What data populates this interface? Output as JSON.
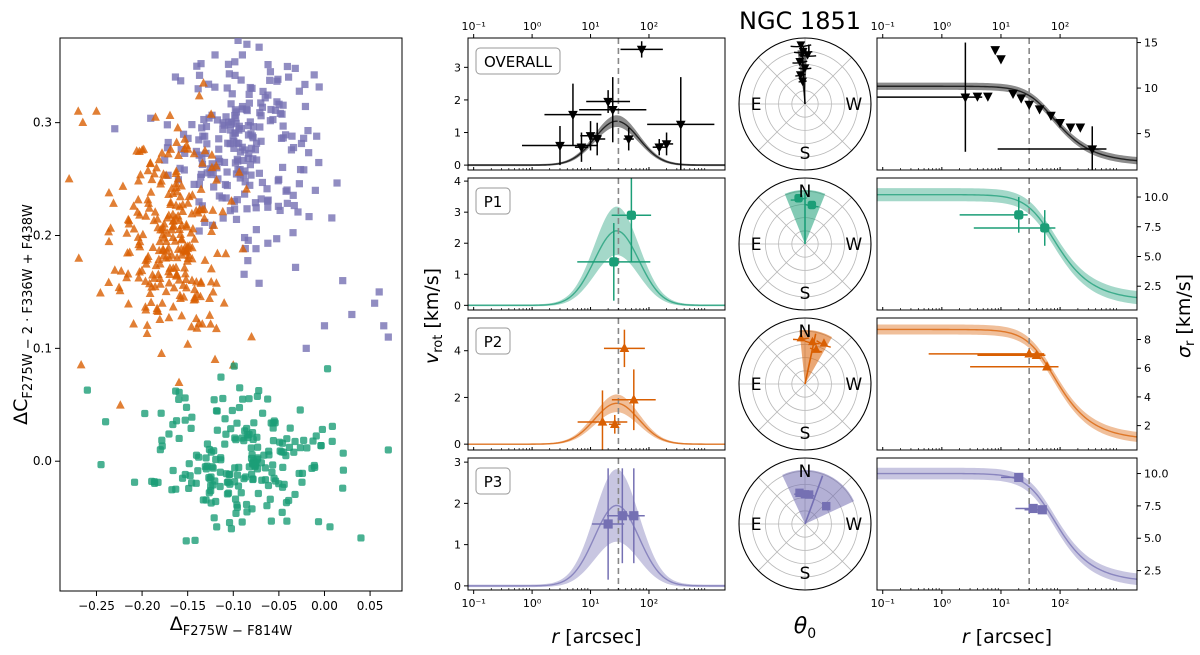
{
  "figure_title": "NGC 1851",
  "colors": {
    "P1": "#1b9e77",
    "P2": "#d95f02",
    "P3": "#7570b3",
    "OVERALL": "#000000"
  },
  "chart_data": [
    {
      "type": "scatter",
      "name": "chromosome-map",
      "xlabel": "Δ_F275W−F814W",
      "ylabel": "ΔC_F275W−2·F336W+F438W",
      "xlim": [
        -0.29,
        0.085
      ],
      "ylim": [
        -0.115,
        0.375
      ],
      "xticks": [
        -0.25,
        -0.2,
        -0.15,
        -0.1,
        -0.05,
        0.0,
        0.05
      ],
      "xtick_labels": [
        "−0.25",
        "−0.20",
        "−0.15",
        "−0.10",
        "−0.05",
        "0.00",
        "0.05"
      ],
      "yticks": [
        0.0,
        0.1,
        0.2,
        0.3
      ],
      "ytick_labels": [
        "0.0",
        "0.1",
        "0.2",
        "0.3"
      ],
      "series": [
        {
          "name": "P3",
          "marker": "square",
          "center": [
            -0.09,
            0.28
          ],
          "spread": [
            0.04,
            0.04
          ],
          "n": 230,
          "extra_points": [
            [
              0.06,
              0.15
            ],
            [
              0.065,
              0.12
            ],
            [
              0.07,
              0.11
            ],
            [
              0.055,
              0.14
            ],
            [
              0.03,
              0.13
            ],
            [
              0.02,
              0.16
            ],
            [
              0.0,
              0.12
            ],
            [
              -0.02,
              0.1
            ],
            [
              -0.01,
              0.24
            ],
            [
              -0.12,
              0.36
            ],
            [
              -0.14,
              0.35
            ],
            [
              -0.09,
              0.36
            ]
          ]
        },
        {
          "name": "P2",
          "marker": "triangle",
          "center": [
            -0.17,
            0.2
          ],
          "spread": [
            0.03,
            0.05
          ],
          "n": 260,
          "extra_points": [
            [
              -0.27,
              0.31
            ],
            [
              -0.265,
              0.3
            ],
            [
              -0.25,
              0.31
            ],
            [
              -0.28,
              0.25
            ],
            [
              -0.12,
              0.09
            ],
            [
              -0.1,
              0.085
            ],
            [
              -0.11,
              0.14
            ],
            [
              -0.08,
              0.11
            ]
          ]
        },
        {
          "name": "P1",
          "marker": "circle",
          "center": [
            -0.09,
            0.0
          ],
          "spread": [
            0.05,
            0.032
          ],
          "n": 210,
          "extra_points": [
            [
              -0.26,
              0.063
            ],
            [
              0.07,
              0.01
            ],
            [
              0.04,
              -0.068
            ],
            [
              -0.24,
              0.035
            ],
            [
              -0.245,
              -0.003
            ]
          ]
        }
      ]
    },
    {
      "type": "line",
      "name": "rotation-profiles",
      "xlabel": "r [arcsec]",
      "ylabel": "v_rot [km/s]",
      "xscale": "log",
      "xlim": [
        0.08,
        2000
      ],
      "xticks": [
        0.1,
        1,
        10,
        100
      ],
      "xtick_labels": [
        "10⁻¹",
        "10⁰",
        "10¹",
        "10²"
      ],
      "reference_radius": 30,
      "panels": [
        {
          "name": "OVERALL",
          "ylim": [
            -0.15,
            3.9
          ],
          "yticks": [
            0,
            1,
            2,
            3
          ],
          "peak_radius": 28,
          "amp": 1.35,
          "band": 0.15,
          "marker": "tri-down",
          "points": [
            [
              3,
              0.6,
              2.6,
              0.6
            ],
            [
              5,
              1.55,
              1.95,
              0.95
            ],
            [
              7,
              0.55,
              0.45,
              0.45
            ],
            [
              10,
              0.9,
              0.7,
              0.45
            ],
            [
              13,
              0.8,
              0.55,
              0.5
            ],
            [
              20,
              1.95,
              1.5,
              0.35
            ],
            [
              24,
              1.7,
              2.3,
              1.0
            ],
            [
              45,
              0.8,
              0.35,
              0.35
            ],
            [
              75,
              3.55,
              1.45,
              0.25
            ],
            [
              150,
              0.55,
              0.45,
              0.25
            ],
            [
              200,
              0.65,
              0.45,
              0.35
            ],
            [
              350,
              1.25,
              2.3,
              1.45
            ]
          ]
        },
        {
          "name": "P1",
          "ylim": [
            -0.15,
            4.1
          ],
          "yticks": [
            0,
            1,
            2,
            3,
            4
          ],
          "peak_radius": 28,
          "amp": 2.4,
          "band": 0.75,
          "marker": "circle",
          "points": [
            [
              25,
              1.4,
              2.5,
              1.25
            ],
            [
              50,
              2.9,
              1.35,
              1.5
            ]
          ]
        },
        {
          "name": "P2",
          "ylim": [
            -0.25,
            5.4
          ],
          "yticks": [
            0,
            2,
            4
          ],
          "peak_radius": 28,
          "amp": 1.75,
          "band": 0.35,
          "marker": "triangle",
          "points": [
            [
              16,
              0.95,
              1.7,
              1.35
            ],
            [
              26,
              0.85,
              0.4,
              0.4
            ],
            [
              38,
              4.1,
              1.4,
              0.8
            ],
            [
              55,
              1.9,
              1.5,
              1.3
            ]
          ]
        },
        {
          "name": "P3",
          "ylim": [
            -0.1,
            3.1
          ],
          "yticks": [
            0,
            1,
            2,
            3
          ],
          "peak_radius": 28,
          "amp": 1.95,
          "band": 0.85,
          "marker": "square",
          "points": [
            [
              20,
              1.5,
              1.1,
              1.35
            ],
            [
              35,
              1.7,
              1.05,
              1.15
            ],
            [
              55,
              1.7,
              0.75,
              1.15
            ]
          ]
        }
      ]
    },
    {
      "type": "line",
      "name": "dispersion-profiles",
      "xlabel": "r [arcsec]",
      "ylabel": "σ_r [km/s]",
      "xscale": "log",
      "xlim": [
        0.08,
        2000
      ],
      "xticks": [
        0.1,
        1,
        10,
        100
      ],
      "xtick_labels": [
        "10⁻¹",
        "10⁰",
        "10¹",
        "10²"
      ],
      "reference_radius": 30,
      "panels": [
        {
          "name": "OVERALL",
          "ylim": [
            1.0,
            15.5
          ],
          "yticks": [
            5,
            10,
            15
          ],
          "sigma0": 10.2,
          "r0": 55,
          "sigma_inf": 1.8,
          "band": 0.4,
          "marker": "tri-down",
          "points": [
            [
              2.5,
              9.0,
              1.9,
              6.0
            ],
            [
              4,
              9.1,
              0,
              0
            ],
            [
              6,
              9.1,
              0,
              0
            ],
            [
              8,
              14.2,
              0,
              0
            ],
            [
              10,
              13.2,
              0,
              0
            ],
            [
              16,
              9.4,
              0,
              0
            ],
            [
              22,
              8.9,
              0,
              0
            ],
            [
              30,
              8.2,
              0,
              0
            ],
            [
              45,
              7.7,
              0,
              0
            ],
            [
              70,
              7.0,
              0,
              0
            ],
            [
              100,
              6.2,
              0,
              0
            ],
            [
              150,
              5.7,
              0,
              0
            ],
            [
              220,
              5.7,
              0,
              0
            ],
            [
              350,
              3.3,
              1.6,
              2.5
            ]
          ]
        },
        {
          "name": "P1",
          "ylim": [
            0.5,
            11.6
          ],
          "yticks": [
            2.5,
            5.0,
            7.5,
            10.0
          ],
          "sigma0": 10.2,
          "r0": 55,
          "sigma_inf": 1.3,
          "band": 0.55,
          "marker": "circle",
          "points": [
            [
              20,
              8.5,
              1.0,
              1.5
            ],
            [
              55,
              7.4,
              1.2,
              1.5
            ]
          ]
        },
        {
          "name": "P2",
          "ylim": [
            0.3,
            9.5
          ],
          "yticks": [
            2,
            4,
            6,
            8
          ],
          "sigma0": 8.7,
          "r0": 55,
          "sigma_inf": 1.0,
          "band": 0.35,
          "marker": "triangle",
          "points": [
            [
              30,
              7.0,
              1.7,
              0
            ],
            [
              40,
              6.9,
              1.0,
              0
            ],
            [
              60,
              6.1,
              1.3,
              0
            ]
          ]
        },
        {
          "name": "P3",
          "ylim": [
            1.0,
            11.2
          ],
          "yticks": [
            2.5,
            5.0,
            7.5,
            10.0
          ],
          "sigma0": 10.0,
          "r0": 55,
          "sigma_inf": 1.6,
          "band": 0.45,
          "marker": "square",
          "points": [
            [
              20,
              9.7,
              0.3,
              0.3
            ],
            [
              35,
              7.3,
              0.3,
              0.3
            ],
            [
              50,
              7.2,
              0.3,
              0.3
            ]
          ]
        }
      ]
    },
    {
      "type": "polar",
      "name": "rotation-axis-angles",
      "xlabel": "θ_0",
      "compass": [
        "N",
        "E",
        "W",
        "S"
      ],
      "panels": [
        {
          "name": "OVERALL",
          "theta_deg": 3,
          "spread_deg": 5,
          "radius": 0.82,
          "points": [
            [
              4,
              0.9
            ],
            [
              2,
              0.8
            ],
            [
              7,
              0.65
            ],
            [
              0,
              0.55
            ],
            [
              9,
              0.45
            ],
            [
              -3,
              0.75
            ],
            [
              6,
              0.35
            ]
          ]
        },
        {
          "name": "P1",
          "theta_deg": 0,
          "spread_deg": 22,
          "radius": 0.82,
          "points": [
            [
              8,
              0.7
            ],
            [
              -10,
              0.6
            ]
          ]
        },
        {
          "name": "P2",
          "theta_deg": -12,
          "spread_deg": 18,
          "radius": 0.82,
          "points": [
            [
              -10,
              0.65
            ],
            [
              -25,
              0.68
            ],
            [
              -18,
              0.55
            ],
            [
              5,
              0.7
            ]
          ]
        },
        {
          "name": "P3",
          "theta_deg": -20,
          "spread_deg": 45,
          "radius": 0.82,
          "points": [
            [
              0,
              0.45
            ],
            [
              -8,
              0.45
            ],
            [
              -50,
              0.42
            ],
            [
              10,
              0.48
            ]
          ]
        }
      ]
    }
  ]
}
